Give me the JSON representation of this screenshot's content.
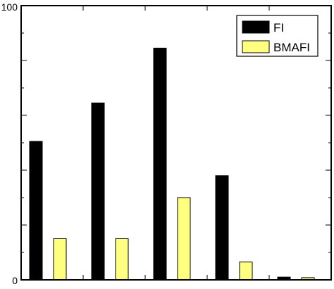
{
  "chart_data": {
    "type": "bar",
    "categories": [
      "",
      "",
      "",
      "",
      ""
    ],
    "series": [
      {
        "name": "FI",
        "color": "#000000",
        "values": [
          50.5,
          64.5,
          84.5,
          38.0,
          1.0
        ]
      },
      {
        "name": "BMAFI",
        "color": "#ffff80",
        "values": [
          15.0,
          15.0,
          30.0,
          6.5,
          0.8
        ]
      }
    ],
    "ylim": [
      0,
      100
    ],
    "y_tick_labels": [
      {
        "value": 0,
        "label": "0"
      },
      {
        "value": 100,
        "label": "100"
      }
    ],
    "y_minor_ticks": [
      0,
      10,
      20,
      30,
      40,
      50,
      60,
      70,
      80,
      90,
      100
    ],
    "x_tick_count": 6,
    "grid": false,
    "legend_position": "top-right"
  }
}
